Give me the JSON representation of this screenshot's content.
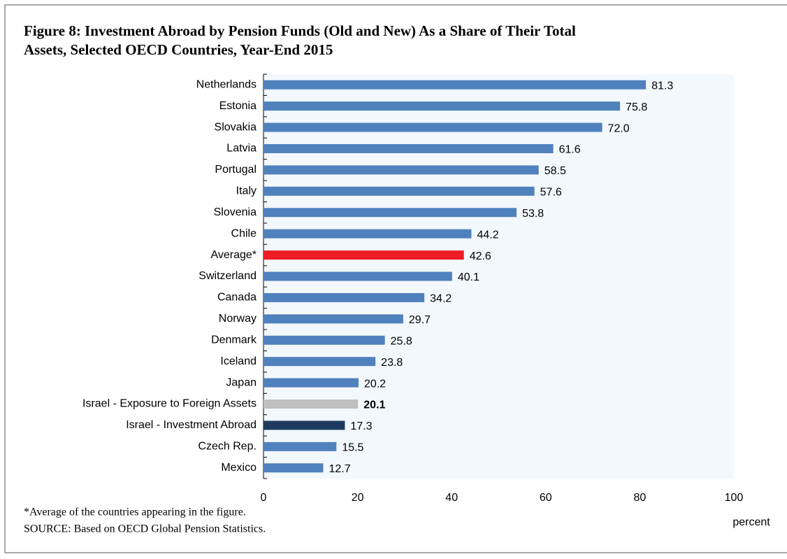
{
  "chart_data": {
    "type": "bar",
    "orientation": "horizontal",
    "title": [
      "Figure 8: Investment Abroad by Pension Funds (Old and New) As a Share of Their Total",
      "Assets, Selected OECD Countries, Year-End 2015"
    ],
    "categories": [
      "Netherlands",
      "Estonia",
      "Slovakia",
      "Latvia",
      "Portugal",
      "Italy",
      "Slovenia",
      "Chile",
      "Average*",
      "Switzerland",
      "Canada",
      "Norway",
      "Denmark",
      "Iceland",
      "Japan",
      "Israel - Exposure to Foreign Assets",
      "Israel - Investment Abroad",
      "Czech Rep.",
      "Mexico"
    ],
    "values": [
      81.3,
      75.8,
      72.0,
      61.6,
      58.5,
      57.6,
      53.8,
      44.2,
      42.6,
      40.1,
      34.2,
      29.7,
      25.8,
      23.8,
      20.2,
      20.1,
      17.3,
      15.5,
      12.7
    ],
    "value_labels": [
      "81.3",
      "75.8",
      "72.0",
      "61.6",
      "58.5",
      "57.6",
      "53.8",
      "44.2",
      "42.6",
      "40.1",
      "34.2",
      "29.7",
      "25.8",
      "23.8",
      "20.2",
      "20.1",
      "17.3",
      "15.5",
      "12.7"
    ],
    "colors": [
      "#4f81bd",
      "#4f81bd",
      "#4f81bd",
      "#4f81bd",
      "#4f81bd",
      "#4f81bd",
      "#4f81bd",
      "#4f81bd",
      "#ee1c25",
      "#4f81bd",
      "#4f81bd",
      "#4f81bd",
      "#4f81bd",
      "#4f81bd",
      "#4f81bd",
      "#bfbfbf",
      "#1f3a5f",
      "#4f81bd",
      "#4f81bd"
    ],
    "label_colors": [
      "#000",
      "#000",
      "#000",
      "#000",
      "#000",
      "#000",
      "#000",
      "#000",
      "#ee1c25",
      "#000",
      "#000",
      "#000",
      "#000",
      "#000",
      "#000",
      "#a6a6a6",
      "#1f3a5f",
      "#000",
      "#000"
    ],
    "xlim": [
      0,
      100
    ],
    "xticks": [
      0,
      20,
      40,
      60,
      80,
      100
    ],
    "xlabel": "percent",
    "grid": false,
    "notes": [
      "*Average of the countries appearing in the figure.",
      "SOURCE: Based on OECD Global Pension Statistics."
    ]
  }
}
